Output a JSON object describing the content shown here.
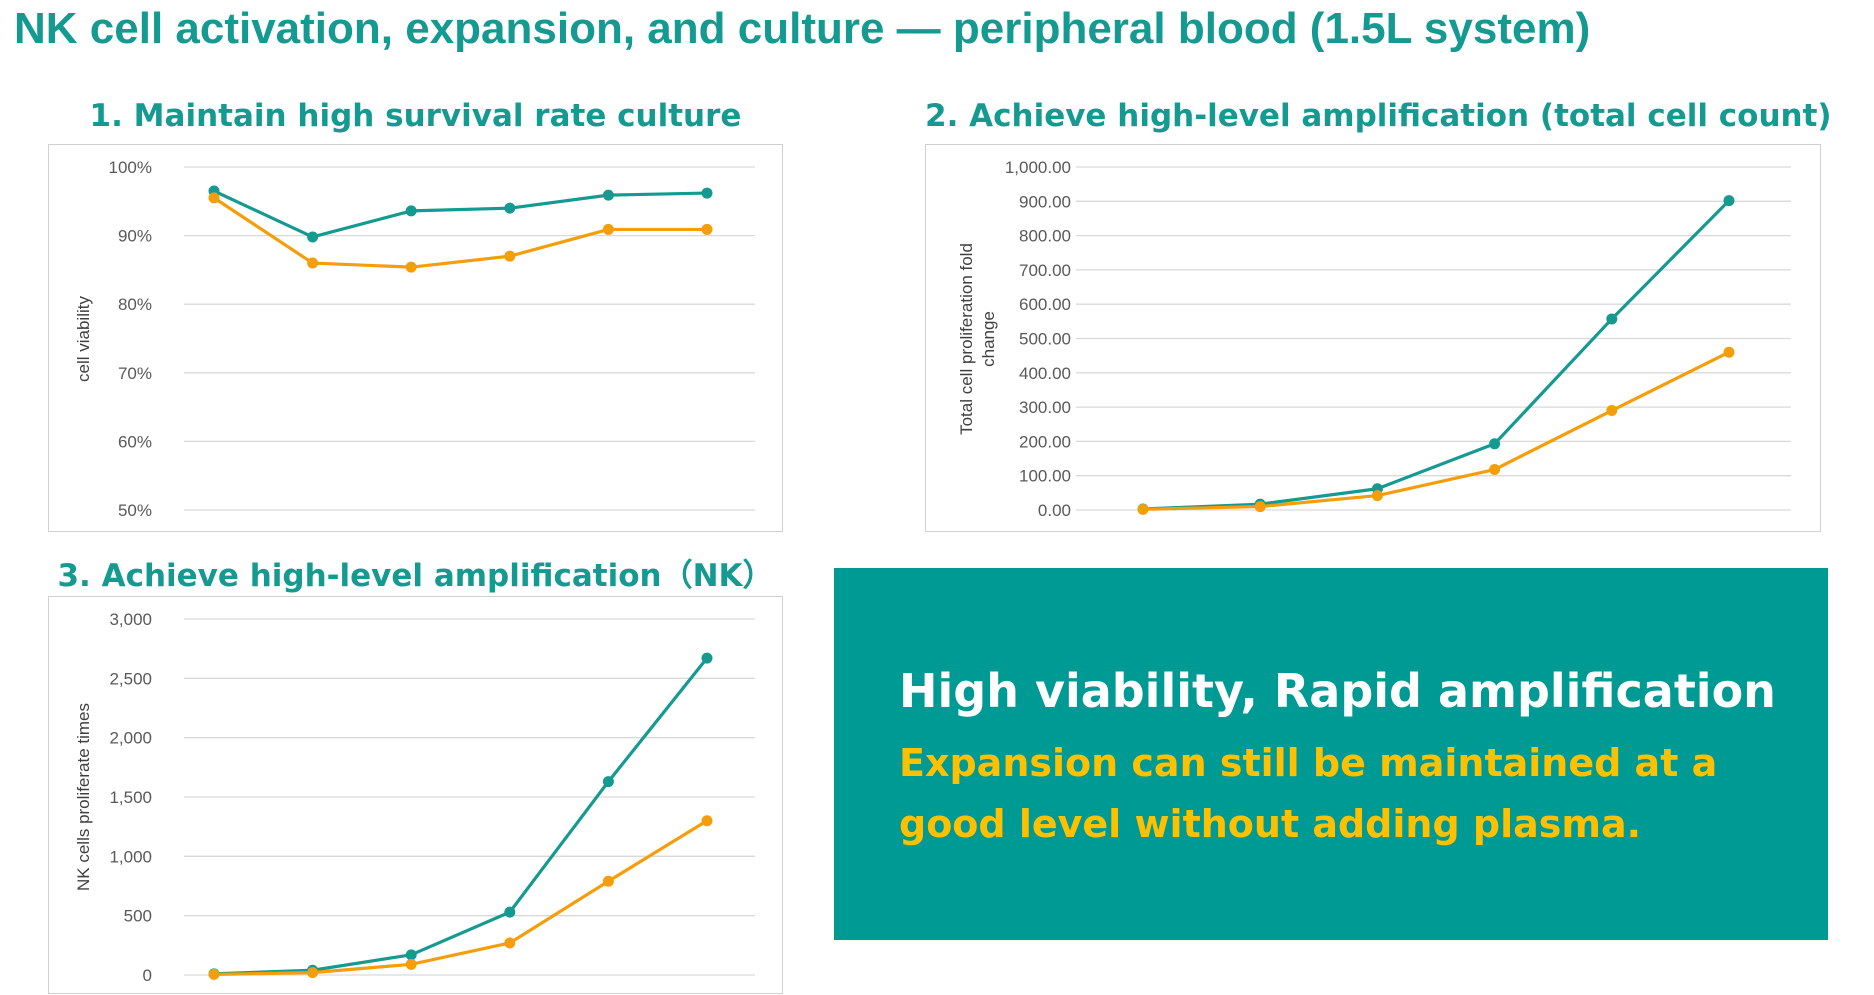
{
  "page": {
    "title": "NK cell activation, expansion, and culture — peripheral blood (1.5L system)"
  },
  "colors": {
    "teal": "#159a91",
    "orange": "#f59e0b",
    "grid": "#d9d9d9",
    "callout_bg": "#009a94",
    "callout_highlight": "#ffc000"
  },
  "callout": {
    "headline": "High viability, Rapid amplification",
    "body": "Expansion can still be maintained at a good level without adding plasma."
  },
  "chart_data": [
    {
      "type": "line",
      "title": "1. Maintain high survival rate culture",
      "ylabel": "cell viability",
      "xlabel": "",
      "ylim": [
        0.5,
        1.0
      ],
      "yticks": [
        0.5,
        0.6,
        0.7,
        0.8,
        0.9,
        1.0
      ],
      "ytick_labels": [
        "50%",
        "60%",
        "70%",
        "80%",
        "90%",
        "100%"
      ],
      "x": [
        1,
        2,
        3,
        4,
        5,
        6
      ],
      "grid": true,
      "legend": "none",
      "series": [
        {
          "color": "#159a91",
          "values": [
            0.965,
            0.898,
            0.936,
            0.94,
            0.959,
            0.962
          ]
        },
        {
          "color": "#f59e0b",
          "values": [
            0.955,
            0.86,
            0.854,
            0.87,
            0.909,
            0.909
          ]
        }
      ]
    },
    {
      "type": "line",
      "title": "2. Achieve high-level amplification (total cell count)",
      "ylabel": "Total cell proliferation fold change",
      "xlabel": "",
      "ylim": [
        0,
        1000
      ],
      "yticks": [
        0,
        100,
        200,
        300,
        400,
        500,
        600,
        700,
        800,
        900,
        1000
      ],
      "ytick_labels": [
        "0.00",
        "100.00",
        "200.00",
        "300.00",
        "400.00",
        "500.00",
        "600.00",
        "700.00",
        "800.00",
        "900.00",
        "1,000.00"
      ],
      "x": [
        1,
        2,
        3,
        4,
        5,
        6
      ],
      "grid": true,
      "legend": "none",
      "series": [
        {
          "color": "#159a91",
          "values": [
            3,
            17,
            62,
            193,
            557,
            902
          ]
        },
        {
          "color": "#f59e0b",
          "values": [
            2,
            10,
            42,
            118,
            290,
            460
          ]
        }
      ]
    },
    {
      "type": "line",
      "title": "3. Achieve high-level amplification（NK）",
      "ylabel": "NK cells proliferate times",
      "xlabel": "",
      "ylim": [
        0,
        3000
      ],
      "yticks": [
        0,
        500,
        1000,
        1500,
        2000,
        2500,
        3000
      ],
      "ytick_labels": [
        "0",
        "500",
        "1,000",
        "1,500",
        "2,000",
        "2,500",
        "3,000"
      ],
      "x": [
        1,
        2,
        3,
        4,
        5,
        6
      ],
      "grid": true,
      "legend": "none",
      "series": [
        {
          "color": "#159a91",
          "values": [
            10,
            40,
            170,
            530,
            1630,
            2670
          ]
        },
        {
          "color": "#f59e0b",
          "values": [
            5,
            20,
            90,
            270,
            790,
            1300
          ]
        }
      ]
    }
  ]
}
